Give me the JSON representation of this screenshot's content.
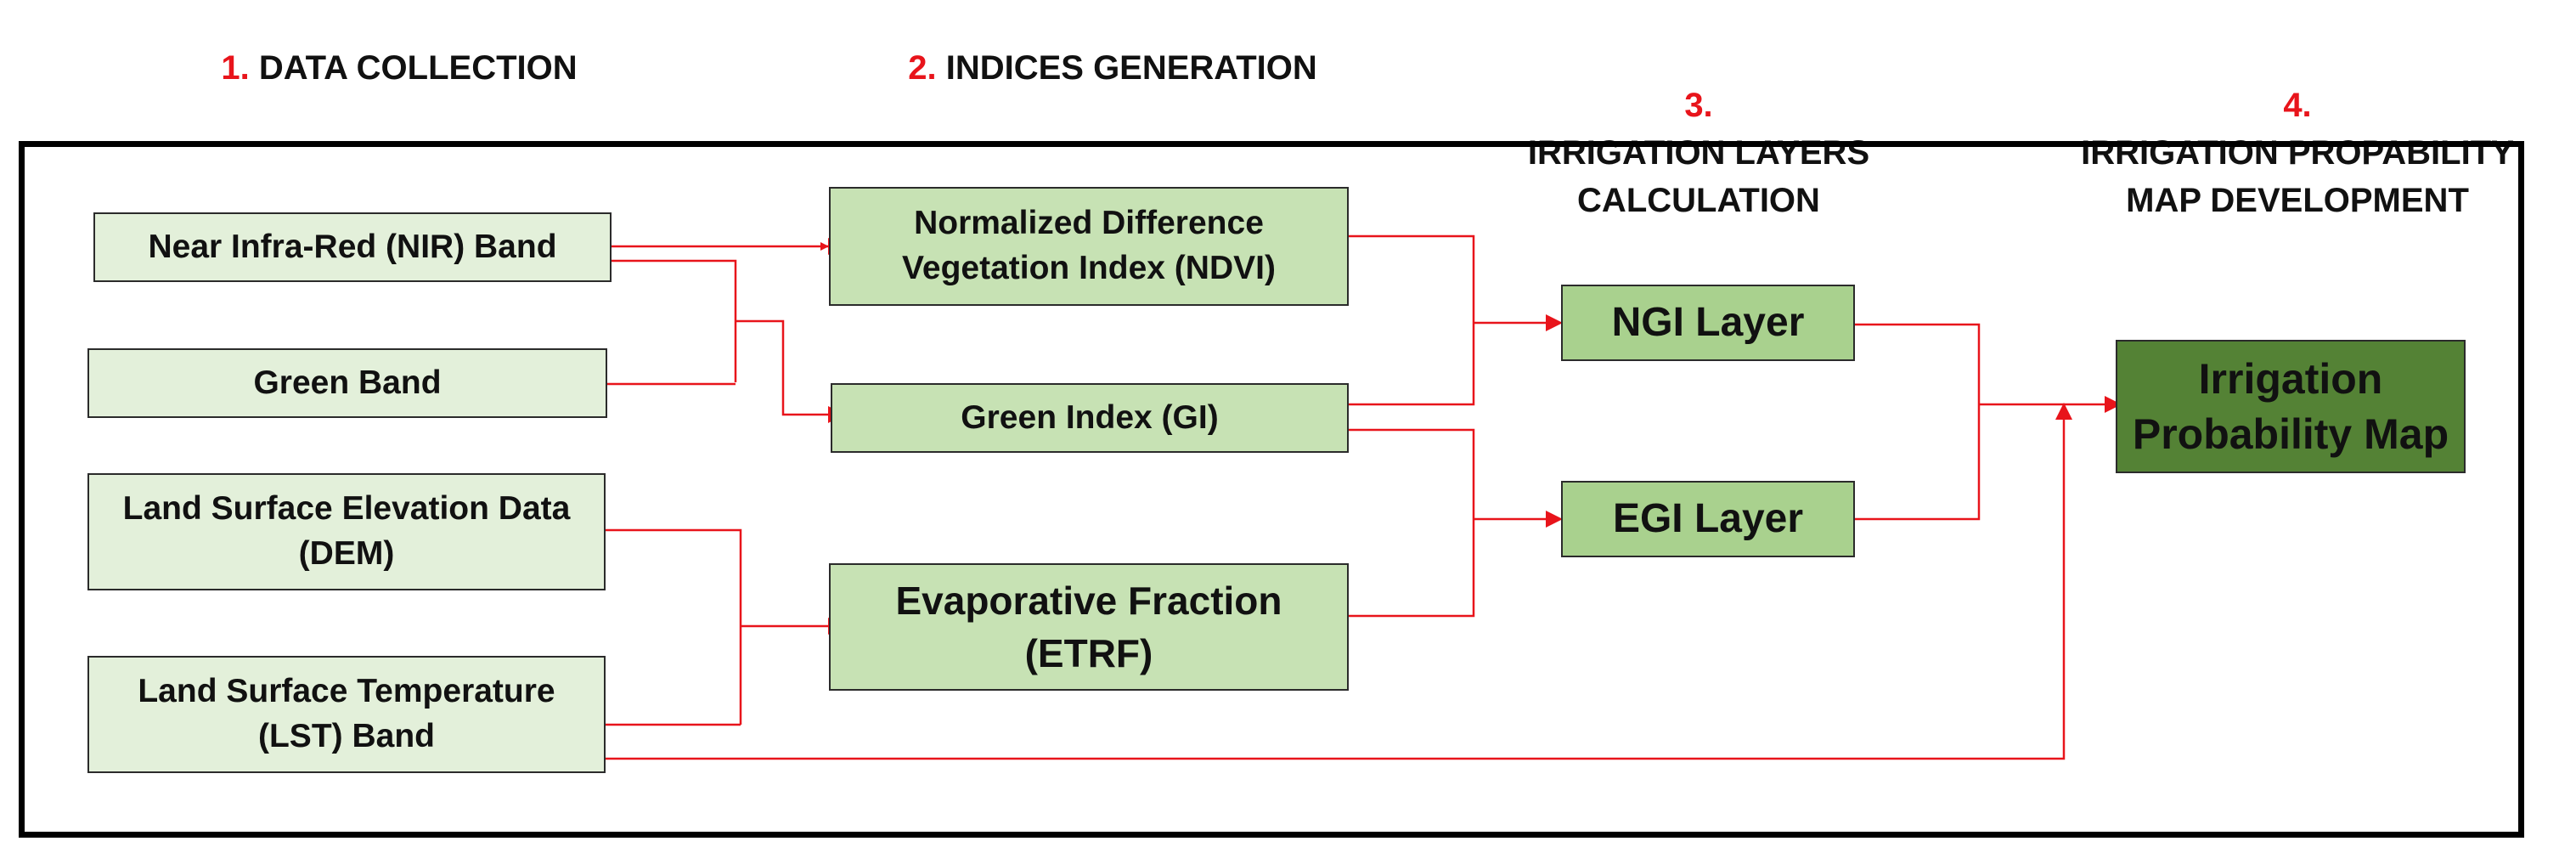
{
  "stages": [
    {
      "num": "1.",
      "label": "DATA COLLECTION"
    },
    {
      "num": "2.",
      "label": "INDICES GENERATION"
    },
    {
      "num": "3.",
      "label": "IRRIGATION LAYERS\nCALCULATION"
    },
    {
      "num": "4.",
      "label": "IRRIGATION PROPABILITY\nMAP DEVELOPMENT"
    }
  ],
  "inputs": {
    "nir": "Near Infra-Red (NIR) Band",
    "green": "Green Band",
    "dem": "Land Surface Elevation Data\n(DEM)",
    "lst": "Land Surface Temperature\n(LST) Band"
  },
  "indices": {
    "ndvi": "Normalized Difference\nVegetation Index (NDVI)",
    "gi": "Green Index (GI)",
    "etrf": "Evaporative Fraction\n(ETRF)"
  },
  "layers": {
    "ngi": "NGI Layer",
    "egi": "EGI Layer"
  },
  "output": {
    "map": "Irrigation\nProbability Map"
  },
  "colors": {
    "arrow": "#e8141b",
    "stage_number": "#e8141b",
    "input_fill": "#e3f0da",
    "index_fill": "#c7e2b4",
    "layer_fill": "#a9d18e",
    "output_fill": "#548235"
  }
}
